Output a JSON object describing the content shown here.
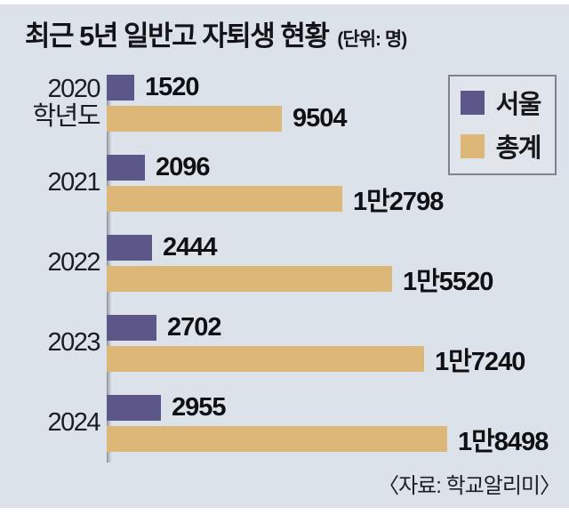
{
  "title": "최근 5년 일반고 자퇴생 현황",
  "unit_note": "(단위: 명)",
  "source": "〈자료: 학교알리미〉",
  "colors": {
    "seoul": "#5b5789",
    "total": "#dcb778",
    "background": "#dce2e9",
    "text": "#121419"
  },
  "legend": [
    {
      "label": "서울",
      "color_key": "seoul"
    },
    {
      "label": "총계",
      "color_key": "total"
    }
  ],
  "chart_data": {
    "type": "bar",
    "orientation": "horizontal",
    "title": "최근 5년 일반고 자퇴생 현황",
    "unit": "명",
    "categories": [
      "2020\n학년도",
      "2021",
      "2022",
      "2023",
      "2024"
    ],
    "series": [
      {
        "name": "서울",
        "color_key": "seoul",
        "values": [
          1520,
          2096,
          2444,
          2702,
          2955
        ],
        "labels": [
          "1520",
          "2096",
          "2444",
          "2702",
          "2955"
        ]
      },
      {
        "name": "총계",
        "color_key": "total",
        "values": [
          9504,
          12798,
          15520,
          17240,
          18498
        ],
        "labels": [
          "9504",
          "1만2798",
          "1만5520",
          "1만7240",
          "1만8498"
        ]
      }
    ],
    "xlim": [
      0,
      18498
    ],
    "grid": false,
    "value_labels_visible": true,
    "legend_position": "top-right",
    "source": "학교알리미"
  }
}
